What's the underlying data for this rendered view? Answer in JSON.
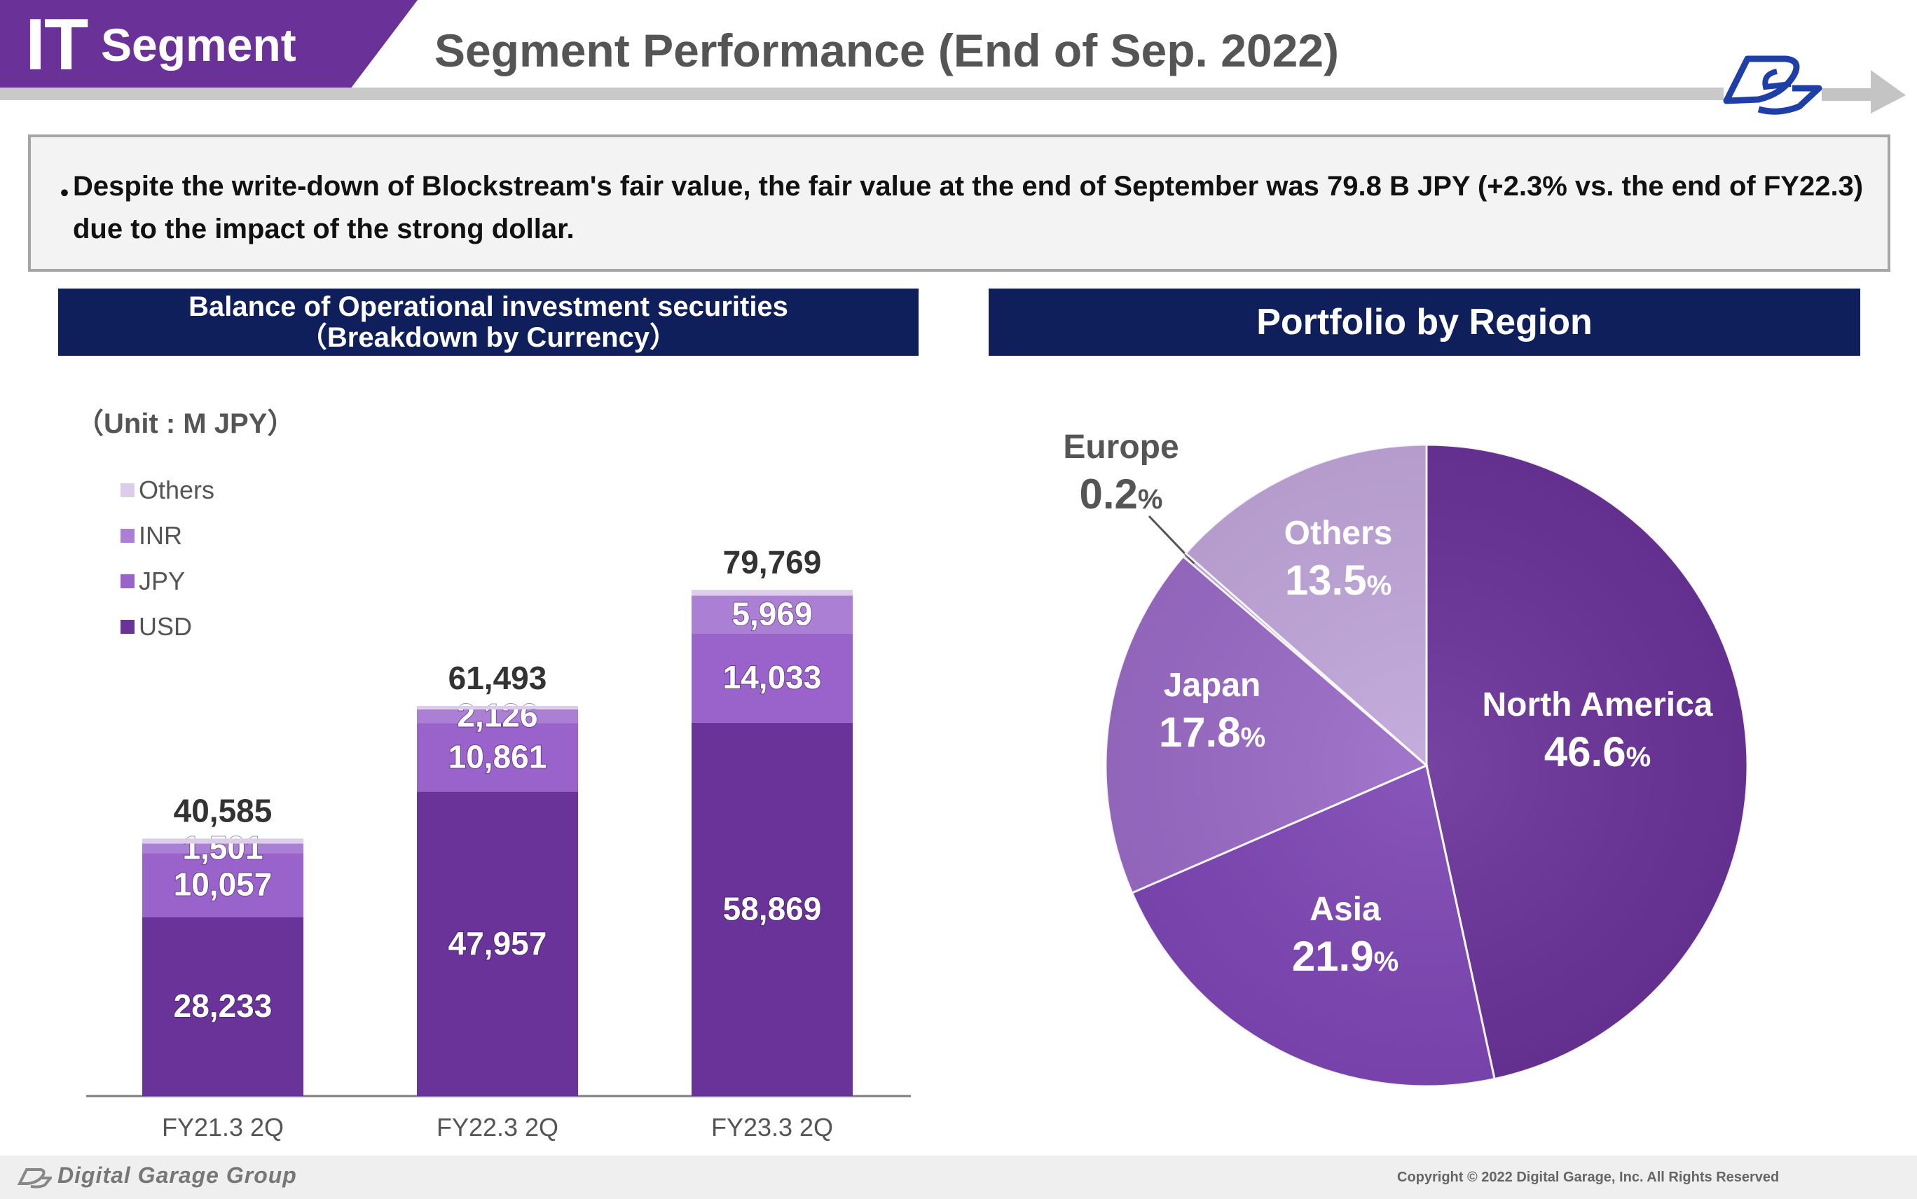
{
  "header": {
    "segment_prefix": "IT",
    "segment_label": "Segment",
    "title": "Segment Performance (End of Sep. 2022)"
  },
  "summary": {
    "bullet": "・",
    "text": "Despite the write-down of Blockstream's fair value, the fair value at the end of September was 79.8 B JPY (+2.3% vs. the end of FY22.3) due to the impact of the strong dollar."
  },
  "bar_panel": {
    "title_line1": "Balance of Operational investment securities",
    "title_line2": "（Breakdown by Currency）",
    "unit": "（Unit : M JPY）"
  },
  "pie_panel": {
    "title": "Portfolio by Region"
  },
  "colors": {
    "navy": "#0e1f5c",
    "purple_tab": "#6a3199",
    "usd": "#6a3399",
    "jpy": "#9a63cc",
    "inr": "#ab80d4",
    "others": "#dccdea",
    "north_america": "#6a3399",
    "asia": "#7e47b5",
    "japan": "#9a6bc6",
    "others_region": "#c0a6da",
    "europe": "#c0a6da"
  },
  "chart_data": [
    {
      "type": "bar",
      "stacked": true,
      "categories": [
        "FY21.3 2Q",
        "FY22.3 2Q",
        "FY23.3 2Q"
      ],
      "series": [
        {
          "name": "USD",
          "values": [
            28233,
            47957,
            58869
          ],
          "color": "#6a3399"
        },
        {
          "name": "JPY",
          "values": [
            10057,
            10861,
            14033
          ],
          "color": "#9a63cc"
        },
        {
          "name": "INR",
          "values": [
            1501,
            2126,
            5969
          ],
          "color": "#ab80d4"
        },
        {
          "name": "Others",
          "values": [
            794,
            549,
            898
          ],
          "color": "#dccdea"
        }
      ],
      "data_labels": [
        [
          "28,233",
          "47,957",
          "58,869"
        ],
        [
          "10,057",
          "10,861",
          "14,033"
        ],
        [
          "1,501",
          "2,126",
          "5,969"
        ]
      ],
      "totals": [
        40585,
        61493,
        79769
      ],
      "total_labels": [
        "40,585",
        "61,493",
        "79,769"
      ],
      "legend": [
        "Others",
        "INR",
        "JPY",
        "USD"
      ],
      "legend_position": "top-left",
      "ylim": [
        0,
        85000
      ],
      "grid": false
    },
    {
      "type": "pie",
      "start": "top",
      "direction": "clockwise",
      "slices": [
        {
          "name": "North America",
          "value": 46.6,
          "color": "#6a3399"
        },
        {
          "name": "Asia",
          "value": 21.9,
          "color": "#7e47b5"
        },
        {
          "name": "Japan",
          "value": 17.8,
          "color": "#9a6bc6"
        },
        {
          "name": "Europe",
          "value": 0.2,
          "color": "#c0a6da"
        },
        {
          "name": "Others",
          "value": 13.5,
          "color": "#c0a6da"
        }
      ],
      "pct_labels": [
        "46.6",
        "21.9",
        "17.8",
        "0.2",
        "13.5"
      ],
      "pct_unit": "%"
    }
  ],
  "footer": {
    "brand": "Digital Garage Group",
    "copyright": "Copyright © 2022 Digital Garage, Inc. All Rights Reserved"
  }
}
